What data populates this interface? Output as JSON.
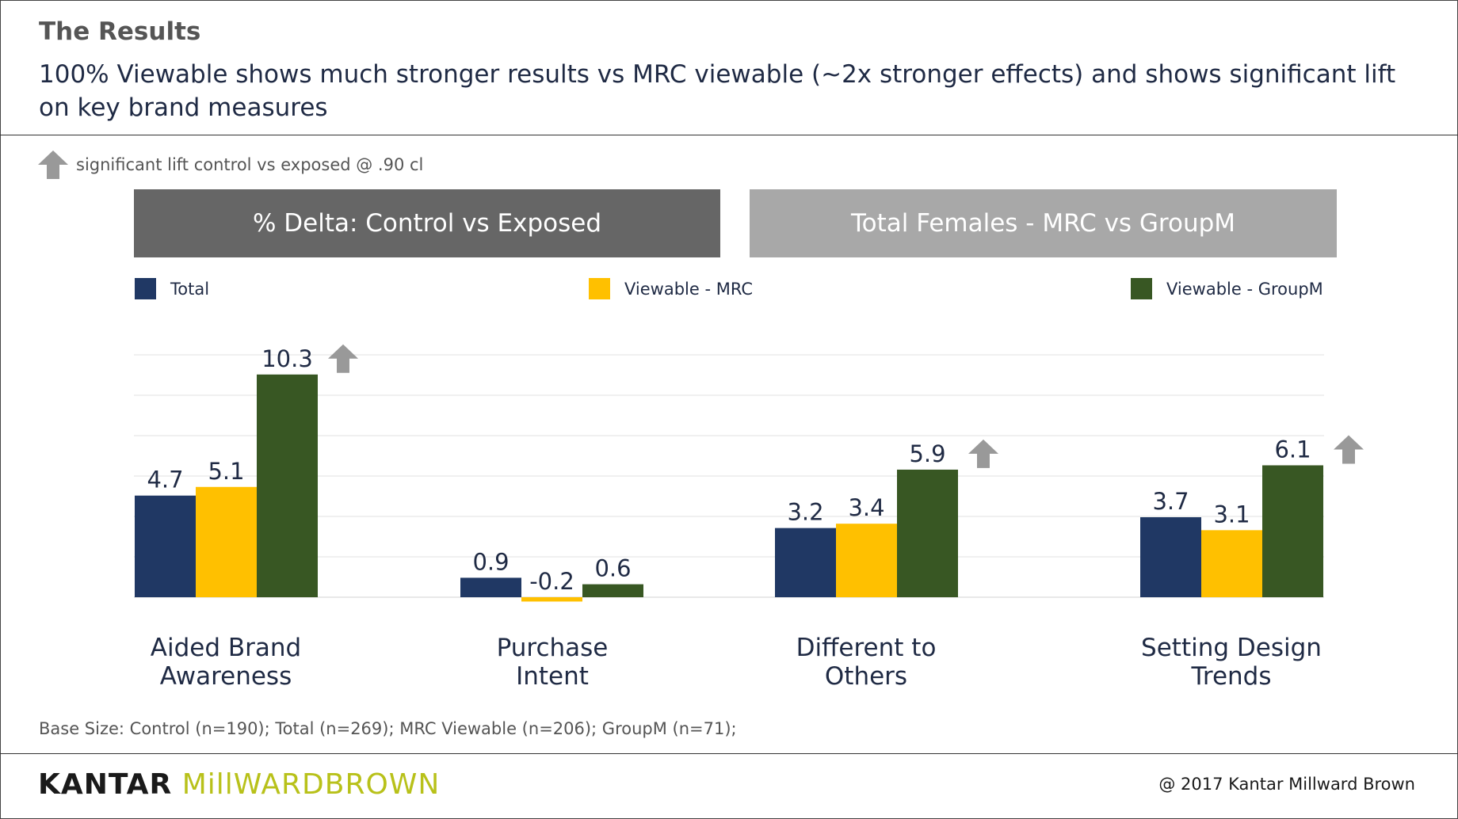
{
  "header": {
    "section_title": "The Results",
    "headline": "100% Viewable shows much stronger results vs MRC viewable (~2x stronger effects) and shows significant lift on key brand measures"
  },
  "significance_note": "significant lift control vs exposed @ .90 cl",
  "banners": {
    "left": "% Delta: Control vs Exposed",
    "right": "Total Females - MRC vs GroupM"
  },
  "colors": {
    "total": "#203864",
    "mrc": "#ffc000",
    "groupm": "#385723",
    "arrow": "#999999"
  },
  "chart_data": {
    "type": "bar",
    "categories": [
      "Aided Brand Awareness",
      "Purchase Intent",
      "Different to Others",
      "Setting Design Trends"
    ],
    "series": [
      {
        "name": "Total",
        "values": [
          4.7,
          0.9,
          3.2,
          3.7
        ]
      },
      {
        "name": "Viewable - MRC",
        "values": [
          5.1,
          -0.2,
          3.4,
          3.1
        ]
      },
      {
        "name": "Viewable - GroupM",
        "values": [
          10.3,
          0.6,
          5.9,
          6.1
        ]
      }
    ],
    "value_labels": [
      [
        "4.7",
        "0.9",
        "3.2",
        "3.7"
      ],
      [
        "5.1",
        "-0.2",
        "3.4",
        "3.1"
      ],
      [
        "10.3",
        "0.6",
        "5.9",
        "6.1"
      ]
    ],
    "significant_lift": [
      true,
      false,
      true,
      true
    ],
    "ylim": [
      -0.5,
      12
    ],
    "grid": true,
    "legend_position": "top"
  },
  "category_labels": [
    [
      "Aided Brand",
      "Awareness"
    ],
    [
      "Purchase",
      "Intent"
    ],
    [
      "Different to",
      "Others"
    ],
    [
      "Setting Design",
      "Trends"
    ]
  ],
  "footer": {
    "base_size": "Base Size: Control (n=190); Total (n=269); MRC Viewable (n=206); GroupM (n=71);",
    "logo_kantar": "KANTAR",
    "logo_mb": "MillWARDBROWN",
    "copyright": "@ 2017 Kantar Millward Brown"
  }
}
